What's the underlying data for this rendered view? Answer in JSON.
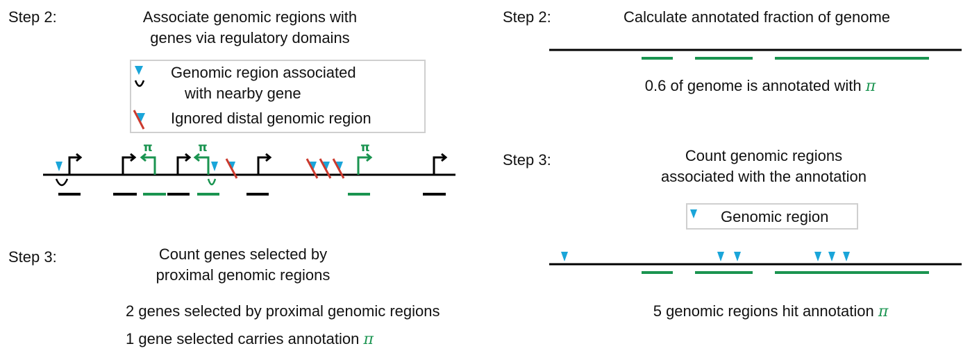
{
  "colors": {
    "green": "#1a9450",
    "cyan": "#1aa5d9",
    "red": "#cc3a2e",
    "black": "#000000",
    "legend_border": "#cfcfcf"
  },
  "icons": {
    "region": "cyan-triangle-icon",
    "association": "arc-icon",
    "ignored": "crossed-triangle-icon",
    "promoter": "promoter-arrow-icon"
  },
  "left": {
    "step2": {
      "step_label": "Step 2:",
      "title_line1": "Associate genomic regions with",
      "title_line2": "genes via regulatory domains",
      "legend": {
        "associated_line1": "Genomic region associated",
        "associated_line2": "with nearby gene",
        "ignored": "Ignored distal genomic region"
      },
      "pi_labels": [
        "π",
        "π",
        "π"
      ]
    },
    "step3": {
      "step_label": "Step 3:",
      "title_line1": "Count genes selected by",
      "title_line2": "proximal genomic regions",
      "result1": "2 genes selected by proximal genomic regions",
      "result2_text": "1 gene selected carries annotation ",
      "result2_symbol": "π"
    }
  },
  "right": {
    "step2": {
      "step_label": "Step 2:",
      "title": "Calculate annotated fraction of genome",
      "fraction": "0.6",
      "result_text": " of genome is annotated with ",
      "result_symbol": "π"
    },
    "step3": {
      "step_label": "Step 3:",
      "title_line1": "Count genomic regions",
      "title_line2": "associated with the annotation",
      "legend_label": "Genomic region",
      "hit_count": "5",
      "result_text": " genomic regions hit annotation ",
      "result_symbol": "π"
    }
  }
}
